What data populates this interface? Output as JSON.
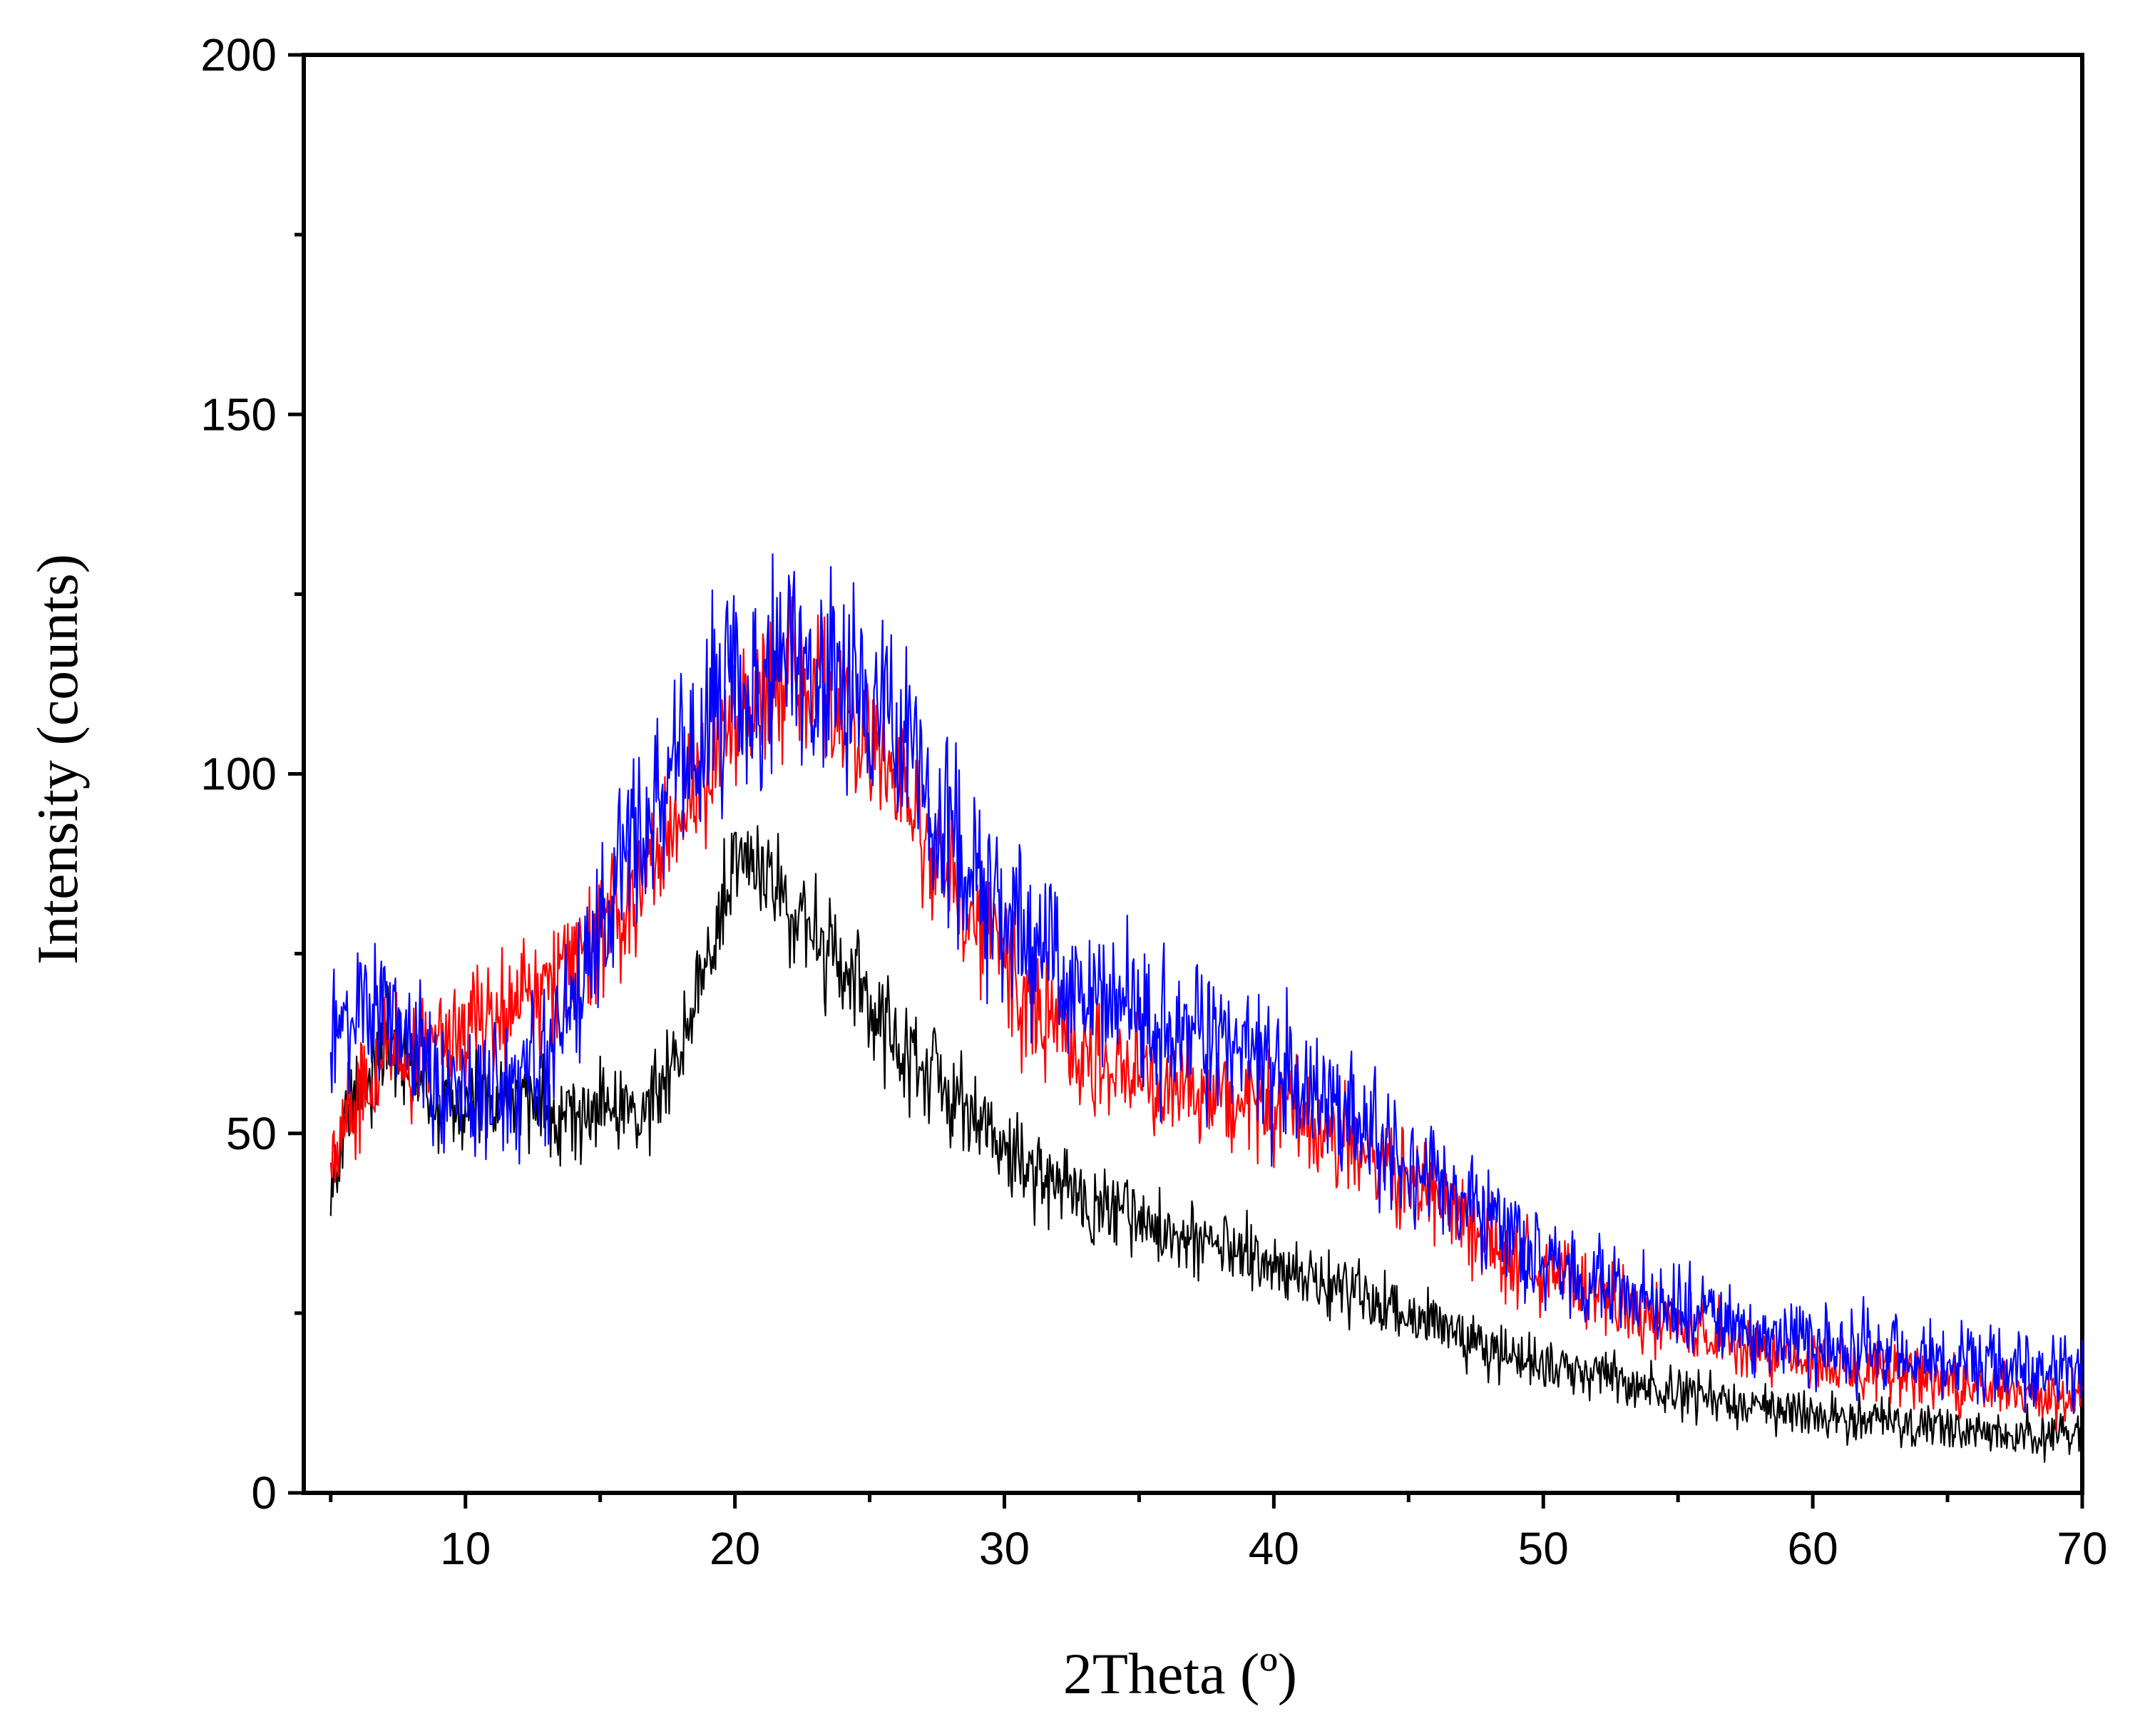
{
  "chart_data": {
    "type": "line",
    "title": "",
    "xlabel": "2Theta (º)",
    "ylabel": "Intensity (counts)",
    "xlim": [
      4,
      70
    ],
    "ylim": [
      0,
      200
    ],
    "x_ticks": [
      10,
      20,
      30,
      40,
      50,
      60,
      70
    ],
    "x_tick_labels": [
      "10",
      "20",
      "30",
      "40",
      "50",
      "60",
      "70"
    ],
    "x_minor_ticks": [
      5,
      15,
      25,
      35,
      45,
      55,
      65
    ],
    "y_ticks": [
      0,
      50,
      100,
      150,
      200
    ],
    "y_tick_labels": [
      "0",
      "50",
      "100",
      "150",
      "200"
    ],
    "y_minor_ticks": [
      25,
      75,
      125,
      175
    ],
    "grid": false,
    "legend": null,
    "series": [
      {
        "name": "black",
        "color": "#000000",
        "noise": 3.5,
        "points": [
          [
            5,
            43
          ],
          [
            6,
            56
          ],
          [
            7,
            62
          ],
          [
            8,
            59
          ],
          [
            9,
            54
          ],
          [
            10,
            54
          ],
          [
            12,
            54
          ],
          [
            14,
            53
          ],
          [
            16,
            53
          ],
          [
            17,
            55
          ],
          [
            18,
            63
          ],
          [
            19,
            75
          ],
          [
            20,
            85
          ],
          [
            20.8,
            89
          ],
          [
            22,
            82
          ],
          [
            24,
            72
          ],
          [
            26,
            63
          ],
          [
            28,
            55
          ],
          [
            30,
            48
          ],
          [
            32,
            42
          ],
          [
            35,
            38
          ],
          [
            38,
            34
          ],
          [
            40,
            31
          ],
          [
            42,
            29
          ],
          [
            44,
            26
          ],
          [
            46,
            24
          ],
          [
            48,
            20
          ],
          [
            50,
            18
          ],
          [
            52,
            16
          ],
          [
            55,
            14
          ],
          [
            58,
            12
          ],
          [
            60,
            11
          ],
          [
            62,
            10
          ],
          [
            65,
            9
          ],
          [
            68,
            8
          ],
          [
            70,
            8
          ]
        ]
      },
      {
        "name": "red",
        "color": "#ff0000",
        "noise": 4,
        "points": [
          [
            5,
            46
          ],
          [
            6,
            55
          ],
          [
            7,
            60
          ],
          [
            8,
            61
          ],
          [
            9,
            64
          ],
          [
            10,
            65
          ],
          [
            12,
            68
          ],
          [
            14,
            74
          ],
          [
            16,
            82
          ],
          [
            18,
            94
          ],
          [
            20,
            106
          ],
          [
            22,
            112
          ],
          [
            24,
            110
          ],
          [
            26,
            98
          ],
          [
            28,
            85
          ],
          [
            30,
            73
          ],
          [
            32,
            63
          ],
          [
            34,
            59
          ],
          [
            36,
            57
          ],
          [
            38,
            55
          ],
          [
            40,
            54
          ],
          [
            42,
            51
          ],
          [
            44,
            46
          ],
          [
            46,
            41
          ],
          [
            48,
            35
          ],
          [
            50,
            31
          ],
          [
            52,
            28
          ],
          [
            54,
            24
          ],
          [
            56,
            22
          ],
          [
            58,
            20
          ],
          [
            60,
            18
          ],
          [
            62,
            17
          ],
          [
            64,
            16
          ],
          [
            66,
            15
          ],
          [
            68,
            14
          ],
          [
            70,
            13
          ]
        ]
      },
      {
        "name": "blue",
        "color": "#0000ff",
        "noise": 5,
        "points": [
          [
            5,
            64
          ],
          [
            6,
            68
          ],
          [
            7,
            67
          ],
          [
            8,
            62
          ],
          [
            9,
            56
          ],
          [
            10,
            55
          ],
          [
            12,
            56
          ],
          [
            13,
            60
          ],
          [
            14,
            70
          ],
          [
            16,
            88
          ],
          [
            18,
            103
          ],
          [
            20,
            112
          ],
          [
            22,
            116
          ],
          [
            24,
            113
          ],
          [
            26,
            104
          ],
          [
            28,
            92
          ],
          [
            30,
            80
          ],
          [
            32,
            73
          ],
          [
            34,
            68
          ],
          [
            36,
            65
          ],
          [
            38,
            63
          ],
          [
            40,
            59
          ],
          [
            42,
            54
          ],
          [
            44,
            49
          ],
          [
            46,
            43
          ],
          [
            48,
            38
          ],
          [
            50,
            33
          ],
          [
            52,
            29
          ],
          [
            54,
            26
          ],
          [
            56,
            24
          ],
          [
            58,
            22
          ],
          [
            60,
            21
          ],
          [
            62,
            20
          ],
          [
            64,
            18
          ],
          [
            66,
            17
          ],
          [
            68,
            17
          ],
          [
            70,
            17
          ]
        ]
      }
    ]
  }
}
